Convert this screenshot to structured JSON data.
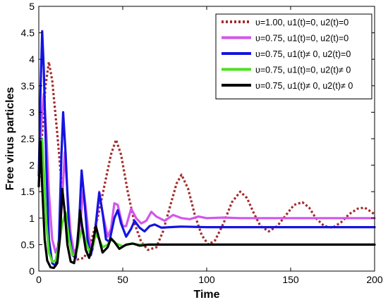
{
  "chart_data": {
    "type": "line",
    "title": "",
    "xlabel": "Time",
    "ylabel": "Free virus particles",
    "xlim": [
      0,
      200
    ],
    "ylim": [
      0,
      5
    ],
    "xticks": [
      0,
      50,
      100,
      150,
      200
    ],
    "yticks": [
      0,
      0.5,
      1,
      1.5,
      2,
      2.5,
      3,
      3.5,
      4,
      4.5,
      5
    ],
    "grid": false,
    "legend_position": "top-right",
    "series": [
      {
        "name": "υ=1.00, u1(t)=0, u2(t)=0",
        "color": "#a52a2a",
        "style": "dotted",
        "points": [
          [
            0,
            1.6
          ],
          [
            2,
            2.6
          ],
          [
            4,
            3.5
          ],
          [
            6,
            3.95
          ],
          [
            8,
            3.6
          ],
          [
            11,
            2.6
          ],
          [
            14,
            1.5
          ],
          [
            17,
            0.75
          ],
          [
            20,
            0.35
          ],
          [
            23,
            0.22
          ],
          [
            27,
            0.25
          ],
          [
            31,
            0.55
          ],
          [
            35,
            1.0
          ],
          [
            39,
            1.6
          ],
          [
            43,
            2.2
          ],
          [
            46,
            2.48
          ],
          [
            49,
            2.2
          ],
          [
            53,
            1.5
          ],
          [
            57,
            0.9
          ],
          [
            61,
            0.55
          ],
          [
            65,
            0.4
          ],
          [
            70,
            0.45
          ],
          [
            74,
            0.75
          ],
          [
            78,
            1.2
          ],
          [
            82,
            1.65
          ],
          [
            85,
            1.82
          ],
          [
            89,
            1.55
          ],
          [
            93,
            1.05
          ],
          [
            97,
            0.68
          ],
          [
            101,
            0.5
          ],
          [
            105,
            0.58
          ],
          [
            110,
            0.9
          ],
          [
            115,
            1.3
          ],
          [
            120,
            1.5
          ],
          [
            124,
            1.38
          ],
          [
            128,
            1.1
          ],
          [
            132,
            0.85
          ],
          [
            137,
            0.75
          ],
          [
            142,
            0.85
          ],
          [
            147,
            1.05
          ],
          [
            152,
            1.25
          ],
          [
            157,
            1.3
          ],
          [
            161,
            1.2
          ],
          [
            165,
            1.0
          ],
          [
            170,
            0.85
          ],
          [
            175,
            0.82
          ],
          [
            180,
            0.92
          ],
          [
            185,
            1.08
          ],
          [
            190,
            1.18
          ],
          [
            194,
            1.2
          ],
          [
            198,
            1.12
          ],
          [
            200,
            1.07
          ]
        ]
      },
      {
        "name": "υ=0.75, u1(t)=0, u2(t)=0",
        "color": "#d256ec",
        "style": "solid",
        "points": [
          [
            0,
            1.8
          ],
          [
            1.5,
            2.8
          ],
          [
            3,
            3.35
          ],
          [
            4.5,
            2.6
          ],
          [
            6,
            1.5
          ],
          [
            8,
            0.6
          ],
          [
            10,
            0.35
          ],
          [
            12,
            0.5
          ],
          [
            14,
            1.4
          ],
          [
            15.5,
            2.25
          ],
          [
            17,
            1.5
          ],
          [
            19,
            0.7
          ],
          [
            21,
            0.35
          ],
          [
            23,
            0.45
          ],
          [
            25,
            1.0
          ],
          [
            26.5,
            1.55
          ],
          [
            28,
            1.2
          ],
          [
            30,
            0.6
          ],
          [
            32,
            0.4
          ],
          [
            34,
            0.8
          ],
          [
            36,
            1.5
          ],
          [
            38,
            1.1
          ],
          [
            41,
            0.65
          ],
          [
            43,
            0.8
          ],
          [
            45,
            1.28
          ],
          [
            47,
            1.25
          ],
          [
            50,
            0.85
          ],
          [
            52,
            0.85
          ],
          [
            55,
            1.18
          ],
          [
            58,
            1.0
          ],
          [
            61,
            0.9
          ],
          [
            64,
            0.95
          ],
          [
            67,
            1.12
          ],
          [
            70,
            1.03
          ],
          [
            75,
            0.95
          ],
          [
            80,
            1.06
          ],
          [
            85,
            1.0
          ],
          [
            90,
            0.98
          ],
          [
            95,
            1.03
          ],
          [
            100,
            1.0
          ],
          [
            110,
            1.01
          ],
          [
            120,
            1.0
          ],
          [
            200,
            1.0
          ]
        ]
      },
      {
        "name": "υ=0.75, u1(t)≠ 0, u2(t)=0",
        "color": "#1414e0",
        "style": "solid",
        "points": [
          [
            0,
            1.8
          ],
          [
            1,
            3.4
          ],
          [
            2,
            4.53
          ],
          [
            3,
            3.8
          ],
          [
            4.5,
            2.0
          ],
          [
            6,
            0.6
          ],
          [
            8,
            0.15
          ],
          [
            10,
            0.1
          ],
          [
            12,
            0.6
          ],
          [
            13.5,
            2.2
          ],
          [
            14.5,
            3.0
          ],
          [
            16,
            2.2
          ],
          [
            18,
            0.8
          ],
          [
            20,
            0.3
          ],
          [
            22,
            0.25
          ],
          [
            24,
            0.9
          ],
          [
            25.5,
            1.9
          ],
          [
            27,
            1.4
          ],
          [
            29,
            0.6
          ],
          [
            31,
            0.3
          ],
          [
            33,
            0.6
          ],
          [
            35,
            1.2
          ],
          [
            36,
            1.48
          ],
          [
            38,
            1.1
          ],
          [
            40,
            0.6
          ],
          [
            42,
            0.55
          ],
          [
            45,
            1.0
          ],
          [
            47,
            1.15
          ],
          [
            49,
            0.9
          ],
          [
            52,
            0.65
          ],
          [
            55,
            0.8
          ],
          [
            57,
            0.95
          ],
          [
            60,
            0.82
          ],
          [
            63,
            0.75
          ],
          [
            66,
            0.85
          ],
          [
            69,
            0.88
          ],
          [
            73,
            0.82
          ],
          [
            78,
            0.83
          ],
          [
            85,
            0.84
          ],
          [
            100,
            0.83
          ],
          [
            200,
            0.83
          ]
        ]
      },
      {
        "name": "υ=0.75, u1(t)=0, u2(t)≠ 0",
        "color": "#4de01f",
        "style": "solid",
        "points": [
          [
            0,
            1.65
          ],
          [
            1,
            2.35
          ],
          [
            2,
            2.5
          ],
          [
            3,
            1.9
          ],
          [
            4.5,
            0.9
          ],
          [
            6,
            0.35
          ],
          [
            8,
            0.18
          ],
          [
            10,
            0.2
          ],
          [
            12,
            0.5
          ],
          [
            14,
            0.9
          ],
          [
            16,
            1.1
          ],
          [
            18,
            0.6
          ],
          [
            20,
            0.3
          ],
          [
            22,
            0.3
          ],
          [
            24,
            0.6
          ],
          [
            26,
            0.82
          ],
          [
            28,
            0.55
          ],
          [
            30,
            0.38
          ],
          [
            32,
            0.45
          ],
          [
            34,
            0.7
          ],
          [
            36,
            0.6
          ],
          [
            38,
            0.45
          ],
          [
            41,
            0.5
          ],
          [
            43,
            0.6
          ],
          [
            46,
            0.52
          ],
          [
            50,
            0.47
          ],
          [
            55,
            0.52
          ],
          [
            60,
            0.5
          ],
          [
            70,
            0.5
          ],
          [
            200,
            0.5
          ]
        ]
      },
      {
        "name": "υ=0.75, u1(t)≠ 0, u2(t)≠ 0",
        "color": "#000000",
        "style": "solid",
        "points": [
          [
            0,
            1.6
          ],
          [
            1,
            2.45
          ],
          [
            2,
            1.6
          ],
          [
            3.5,
            0.6
          ],
          [
            5,
            0.2
          ],
          [
            7,
            0.07
          ],
          [
            9,
            0.06
          ],
          [
            11,
            0.15
          ],
          [
            12.5,
            0.6
          ],
          [
            14,
            1.55
          ],
          [
            15.5,
            1.1
          ],
          [
            17,
            0.5
          ],
          [
            19,
            0.18
          ],
          [
            21,
            0.15
          ],
          [
            23,
            0.5
          ],
          [
            24.5,
            1.15
          ],
          [
            26,
            0.8
          ],
          [
            28,
            0.4
          ],
          [
            30,
            0.25
          ],
          [
            32,
            0.5
          ],
          [
            34,
            0.85
          ],
          [
            36,
            0.6
          ],
          [
            38,
            0.35
          ],
          [
            41,
            0.45
          ],
          [
            43,
            0.62
          ],
          [
            45,
            0.55
          ],
          [
            48,
            0.42
          ],
          [
            52,
            0.5
          ],
          [
            56,
            0.52
          ],
          [
            60,
            0.48
          ],
          [
            65,
            0.5
          ],
          [
            70,
            0.5
          ],
          [
            200,
            0.5
          ]
        ]
      }
    ]
  }
}
